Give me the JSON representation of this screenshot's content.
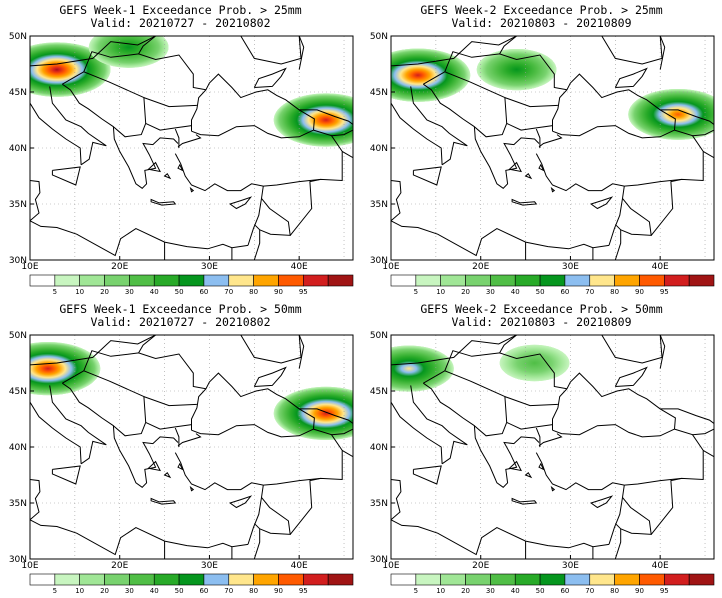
{
  "panels": [
    {
      "title": "GEFS Week-1 Exceedance Prob. > 25mm",
      "valid": "Valid: 20210727 - 20210802",
      "threshold_mm": 25,
      "week": 1,
      "blobs": [
        {
          "region": "Alps/N Italy",
          "lon": 13,
          "lat": 47,
          "peak": 95
        },
        {
          "region": "Caucasus",
          "lon": 43,
          "lat": 42.5,
          "peak": 90
        },
        {
          "region": "Poland/Slovakia",
          "lon": 21,
          "lat": 49,
          "peak": 40
        }
      ]
    },
    {
      "title": "GEFS Week-2 Exceedance Prob. > 25mm",
      "valid": "Valid: 20210803 - 20210809",
      "threshold_mm": 25,
      "week": 2,
      "blobs": [
        {
          "region": "Alps/N Italy",
          "lon": 13,
          "lat": 46.5,
          "peak": 90
        },
        {
          "region": "Carpathians",
          "lon": 24,
          "lat": 47,
          "peak": 40
        },
        {
          "region": "Caucasus",
          "lon": 42,
          "lat": 43,
          "peak": 80
        }
      ]
    },
    {
      "title": "GEFS Week-1 Exceedance Prob. > 50mm",
      "valid": "Valid: 20210727 - 20210802",
      "threshold_mm": 50,
      "week": 1,
      "blobs": [
        {
          "region": "Alps/N Italy",
          "lon": 12,
          "lat": 47,
          "peak": 90
        },
        {
          "region": "Caucasus",
          "lon": 43,
          "lat": 43,
          "peak": 90
        }
      ]
    },
    {
      "title": "GEFS Week-2 Exceedance Prob. > 50mm",
      "valid": "Valid: 20210803 - 20210809",
      "threshold_mm": 50,
      "week": 2,
      "blobs": [
        {
          "region": "Alps/N Italy",
          "lon": 12,
          "lat": 47,
          "peak": 60
        },
        {
          "region": "Ukraine",
          "lon": 26,
          "lat": 47.5,
          "peak": 20
        }
      ]
    }
  ],
  "map": {
    "lon_range": [
      10,
      46
    ],
    "lat_range": [
      30,
      50
    ],
    "lat_labels": [
      "30N",
      "35N",
      "40N",
      "45N",
      "50N"
    ],
    "lon_labels": [
      "10E",
      "20E",
      "30E",
      "40E"
    ],
    "grid": "dotted"
  },
  "colorbar": {
    "labels": [
      "5",
      "10",
      "20",
      "30",
      "40",
      "50",
      "60",
      "70",
      "80",
      "90",
      "95"
    ],
    "colors": [
      "#ffffff",
      "#c8f5c0",
      "#a0e696",
      "#78d26e",
      "#50be46",
      "#28aa28",
      "#05961e",
      "#8cbef0",
      "#ffe68c",
      "#ffa500",
      "#ff5a00",
      "#d21e1e",
      "#a01414"
    ]
  },
  "colors": {
    "border": "#000000",
    "grid": "#9a9a9a"
  }
}
